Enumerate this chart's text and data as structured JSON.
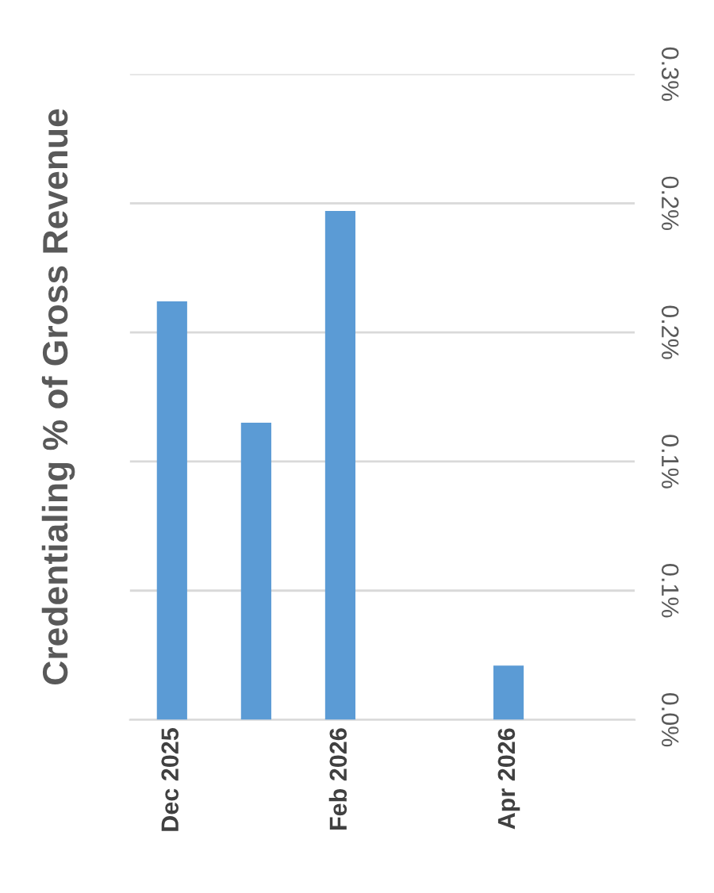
{
  "chart_data": {
    "type": "bar",
    "ylabel": "Credentialing % of Gross Revenue",
    "categories": [
      "Dec 2025",
      null,
      "Feb 2026",
      null,
      "Apr 2026",
      null
    ],
    "values": [
      0.162,
      0.115,
      0.197,
      null,
      0.021,
      null
    ],
    "color": "#5b9bd5",
    "ylim": [
      0,
      0.25
    ],
    "yticks": [
      {
        "value": 0,
        "label": "0.0%"
      },
      {
        "value": 0.05,
        "label": "0.1%"
      },
      {
        "value": 0.1,
        "label": "0.1%"
      },
      {
        "value": 0.15,
        "label": "0.2%"
      },
      {
        "value": 0.2,
        "label": "0.2%"
      },
      {
        "value": 0.25,
        "label": "0.3%"
      }
    ],
    "grid": "y"
  }
}
